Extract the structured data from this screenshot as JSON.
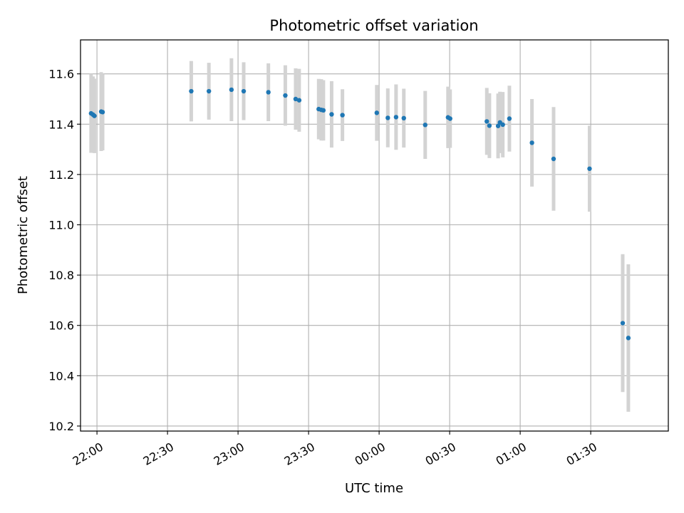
{
  "chart_data": {
    "type": "scatter",
    "title": "Photometric offset variation",
    "xlabel": "UTC time",
    "ylabel": "Photometric offset",
    "x_axis_kind": "time",
    "x_start": "21:53",
    "x_end": "02:03",
    "x_ticks": [
      "22:00",
      "22:30",
      "23:00",
      "23:30",
      "00:00",
      "00:30",
      "01:00",
      "01:30"
    ],
    "y_ticks": [
      "10.2",
      "10.4",
      "10.6",
      "10.8",
      "11.0",
      "11.2",
      "11.4",
      "11.6"
    ],
    "ylim": [
      10.18,
      11.735
    ],
    "grid": true,
    "marker_color": "#1f77b4",
    "errorbar_color": "#d3d3d3",
    "points": [
      {
        "x": "21:57.5",
        "y": 11.443,
        "yerr": 0.157
      },
      {
        "x": "21:58.3",
        "y": 11.438,
        "yerr": 0.152
      },
      {
        "x": "21:58.9",
        "y": 11.433,
        "yerr": 0.148
      },
      {
        "x": "22:01.8",
        "y": 11.45,
        "yerr": 0.157
      },
      {
        "x": "22:02.4",
        "y": 11.448,
        "yerr": 0.152
      },
      {
        "x": "22:40.1",
        "y": 11.531,
        "yerr": 0.12
      },
      {
        "x": "22:47.6",
        "y": 11.531,
        "yerr": 0.113
      },
      {
        "x": "22:57.2",
        "y": 11.537,
        "yerr": 0.125
      },
      {
        "x": "23:02.4",
        "y": 11.531,
        "yerr": 0.115
      },
      {
        "x": "23:12.9",
        "y": 11.527,
        "yerr": 0.115
      },
      {
        "x": "23:20.1",
        "y": 11.514,
        "yerr": 0.12
      },
      {
        "x": "23:24.5",
        "y": 11.5,
        "yerr": 0.122
      },
      {
        "x": "23:26.0",
        "y": 11.495,
        "yerr": 0.125
      },
      {
        "x": "23:34.3",
        "y": 11.46,
        "yerr": 0.12
      },
      {
        "x": "23:35.4",
        "y": 11.457,
        "yerr": 0.122
      },
      {
        "x": "23:36.3",
        "y": 11.455,
        "yerr": 0.12
      },
      {
        "x": "23:39.8",
        "y": 11.439,
        "yerr": 0.132
      },
      {
        "x": "23:44.4",
        "y": 11.436,
        "yerr": 0.103
      },
      {
        "x": "23:59.0",
        "y": 11.445,
        "yerr": 0.111
      },
      {
        "x": "00:03.7",
        "y": 11.425,
        "yerr": 0.117
      },
      {
        "x": "00:07.2",
        "y": 11.428,
        "yerr": 0.13
      },
      {
        "x": "00:10.5",
        "y": 11.424,
        "yerr": 0.117
      },
      {
        "x": "00:19.6",
        "y": 11.397,
        "yerr": 0.135
      },
      {
        "x": "00:29.3",
        "y": 11.427,
        "yerr": 0.122
      },
      {
        "x": "00:30.2",
        "y": 11.422,
        "yerr": 0.116
      },
      {
        "x": "00:45.8",
        "y": 11.411,
        "yerr": 0.133
      },
      {
        "x": "00:46.9",
        "y": 11.394,
        "yerr": 0.129
      },
      {
        "x": "00:50.6",
        "y": 11.393,
        "yerr": 0.129
      },
      {
        "x": "00:51.4",
        "y": 11.407,
        "yerr": 0.122
      },
      {
        "x": "00:52.6",
        "y": 11.398,
        "yerr": 0.13
      },
      {
        "x": "00:55.4",
        "y": 11.422,
        "yerr": 0.131
      },
      {
        "x": "01:05.0",
        "y": 11.326,
        "yerr": 0.174
      },
      {
        "x": "01:14.2",
        "y": 11.262,
        "yerr": 0.206
      },
      {
        "x": "01:29.5",
        "y": 11.223,
        "yerr": 0.171
      },
      {
        "x": "01:43.6",
        "y": 10.609,
        "yerr": 0.274
      },
      {
        "x": "01:46.0",
        "y": 10.55,
        "yerr": 0.293
      }
    ]
  }
}
